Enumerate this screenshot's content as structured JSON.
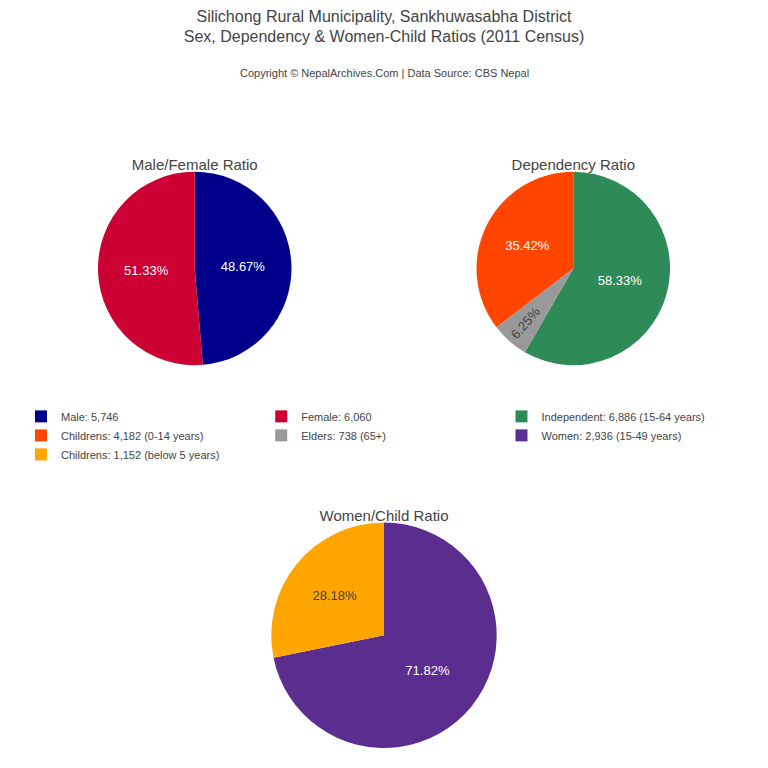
{
  "title": "Silichong Rural Municipality, Sankhuwasabha District\nSex, Dependency & Women-Child Ratios (2011 Census)",
  "subtitle": "Copyright © NepalArchives.Com | Data Source: CBS Nepal",
  "chart_data": [
    {
      "type": "pie",
      "title": "Male/Female Ratio",
      "categories": [
        "Male: 5,746",
        "Female: 6,060"
      ],
      "values": [
        48.67,
        51.33
      ],
      "value_labels": [
        "48.67%",
        "51.33%"
      ],
      "colors": [
        "#00008B",
        "#CC0033"
      ],
      "data_labels": true,
      "legend": "center"
    },
    {
      "type": "pie",
      "title": "Dependency Ratio",
      "categories": [
        "Independent: 6,886 (15-64 years)",
        "Childrens: 4,182 (0-14 years)",
        "Elders: 738 (65+)"
      ],
      "values": [
        58.33,
        35.42,
        6.25
      ],
      "value_labels": [
        "58.33%",
        "35.42%",
        "6.25%"
      ],
      "colors": [
        "#2E8B57",
        "#FF4500",
        "#999999"
      ],
      "data_labels": true,
      "legend": "center"
    },
    {
      "type": "pie",
      "title": "Women/Child Ratio",
      "categories": [
        "Women: 2,936 (15-49 years)",
        "Childrens: 1,152 (below 5 years)"
      ],
      "values": [
        71.82,
        28.18
      ],
      "value_labels": [
        "71.82%",
        "28.18%"
      ],
      "colors": [
        "#5B2D8E",
        "#FFA500"
      ],
      "data_labels": true,
      "legend": "center"
    }
  ]
}
